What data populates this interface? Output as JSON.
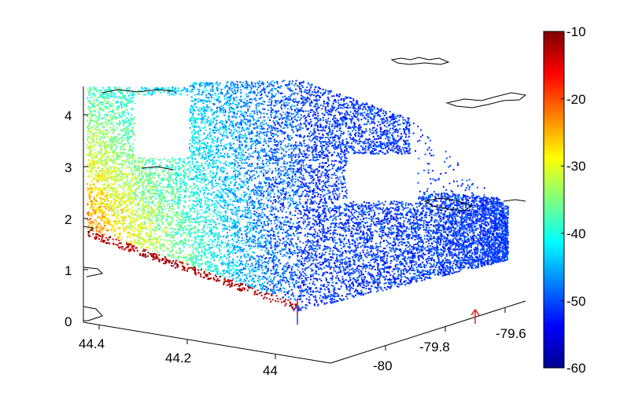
{
  "chart_data": {
    "type": "scatter",
    "title": "",
    "xlabel": "",
    "ylabel": "",
    "zlabel": "",
    "axes": {
      "latitude_ticks": [
        "44.4",
        "44.2",
        "44"
      ],
      "longitude_ticks": [
        "-80",
        "-79.8",
        "-79.6"
      ],
      "height_ticks": [
        "0",
        "1",
        "2",
        "3",
        "4"
      ],
      "height_range": [
        0,
        4.5
      ]
    },
    "colorbar": {
      "colormap": "jet",
      "range": [
        -60,
        -10
      ],
      "ticks": [
        "-10",
        "-20",
        "-30",
        "-40",
        "-50",
        "-60"
      ]
    },
    "series": [
      {
        "description_free": true,
        "values": []
      }
    ],
    "markers": [
      {
        "color": "#1f3cff",
        "at": "origin"
      },
      {
        "color": "#e81a1a",
        "at": "origin"
      },
      {
        "color": "#e81a1a",
        "at": "longitude-axis"
      }
    ],
    "grid": false,
    "legend": "none"
  }
}
